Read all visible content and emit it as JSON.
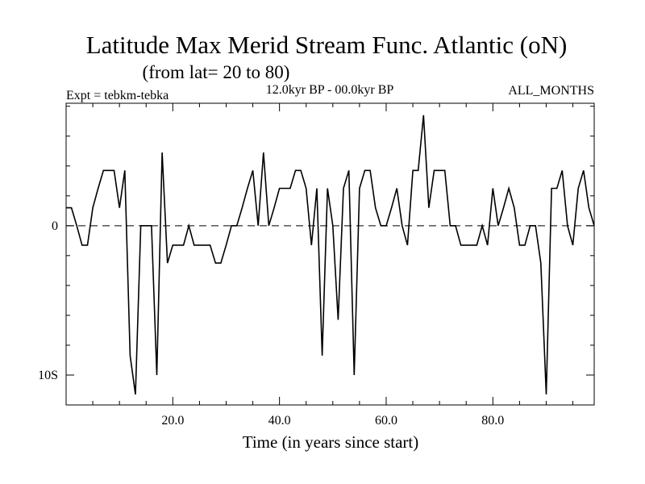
{
  "chart_data": {
    "type": "line",
    "title": "Latitude Max Merid Stream Func. Atlantic (oN)",
    "subtitle": "(from lat= 20 to 80)",
    "left_label": "Expt = tebkm-tebka",
    "center_label": "12.0kyr BP - 00.0kyr BP",
    "right_label": "ALL_MONTHS",
    "xlabel": "Time (in years since start)",
    "ylabel": "",
    "xlim": [
      0,
      99
    ],
    "ylim": [
      -12,
      8.2
    ],
    "x_ticks": [
      20,
      40,
      60,
      80
    ],
    "x_tick_labels": [
      "20.0",
      "40.0",
      "60.0",
      "80.0"
    ],
    "y_ticks": [
      0,
      -10
    ],
    "y_tick_labels": [
      "0",
      "10S"
    ],
    "zero_line": "dashed",
    "series": [
      {
        "name": "tebkm-tebka",
        "x": [
          0,
          1,
          2,
          3,
          4,
          5,
          6,
          7,
          8,
          9,
          10,
          11,
          12,
          13,
          14,
          15,
          16,
          17,
          18,
          19,
          20,
          21,
          22,
          23,
          24,
          25,
          26,
          27,
          28,
          29,
          30,
          31,
          32,
          33,
          34,
          35,
          36,
          37,
          38,
          39,
          40,
          41,
          42,
          43,
          44,
          45,
          46,
          47,
          48,
          49,
          50,
          51,
          52,
          53,
          54,
          55,
          56,
          57,
          58,
          59,
          60,
          61,
          62,
          63,
          64,
          65,
          66,
          67,
          68,
          69,
          70,
          71,
          72,
          73,
          74,
          75,
          76,
          77,
          78,
          79,
          80,
          81,
          82,
          83,
          84,
          85,
          86,
          87,
          88,
          89,
          90,
          91,
          92,
          93,
          94,
          95,
          96,
          97,
          98,
          99
        ],
        "y": [
          1.2,
          1.2,
          0,
          -1.3,
          -1.3,
          1.2,
          2.5,
          3.7,
          3.7,
          3.7,
          1.2,
          3.7,
          -8.7,
          -11.3,
          0,
          0,
          0,
          -10,
          4.9,
          -2.5,
          -1.3,
          -1.3,
          -1.3,
          0,
          -1.3,
          -1.3,
          -1.3,
          -1.3,
          -2.5,
          -2.5,
          -1.3,
          0,
          0,
          1.2,
          2.5,
          3.7,
          0,
          4.9,
          0,
          1.2,
          2.5,
          2.5,
          2.5,
          3.7,
          3.7,
          2.5,
          -1.3,
          2.5,
          -8.7,
          2.5,
          0,
          -6.3,
          2.5,
          3.7,
          -10,
          2.5,
          3.7,
          3.7,
          1.2,
          0,
          0,
          1.2,
          2.5,
          0,
          -1.3,
          3.7,
          3.7,
          7.4,
          1.2,
          3.7,
          3.7,
          3.7,
          0,
          0,
          -1.3,
          -1.3,
          -1.3,
          -1.3,
          0,
          -1.3,
          2.5,
          0,
          1.2,
          2.5,
          1.2,
          -1.3,
          -1.3,
          0,
          0,
          -2.5,
          -11.3,
          2.5,
          2.5,
          3.7,
          0,
          -1.3,
          2.5,
          3.7,
          1.2,
          0
        ]
      }
    ]
  }
}
